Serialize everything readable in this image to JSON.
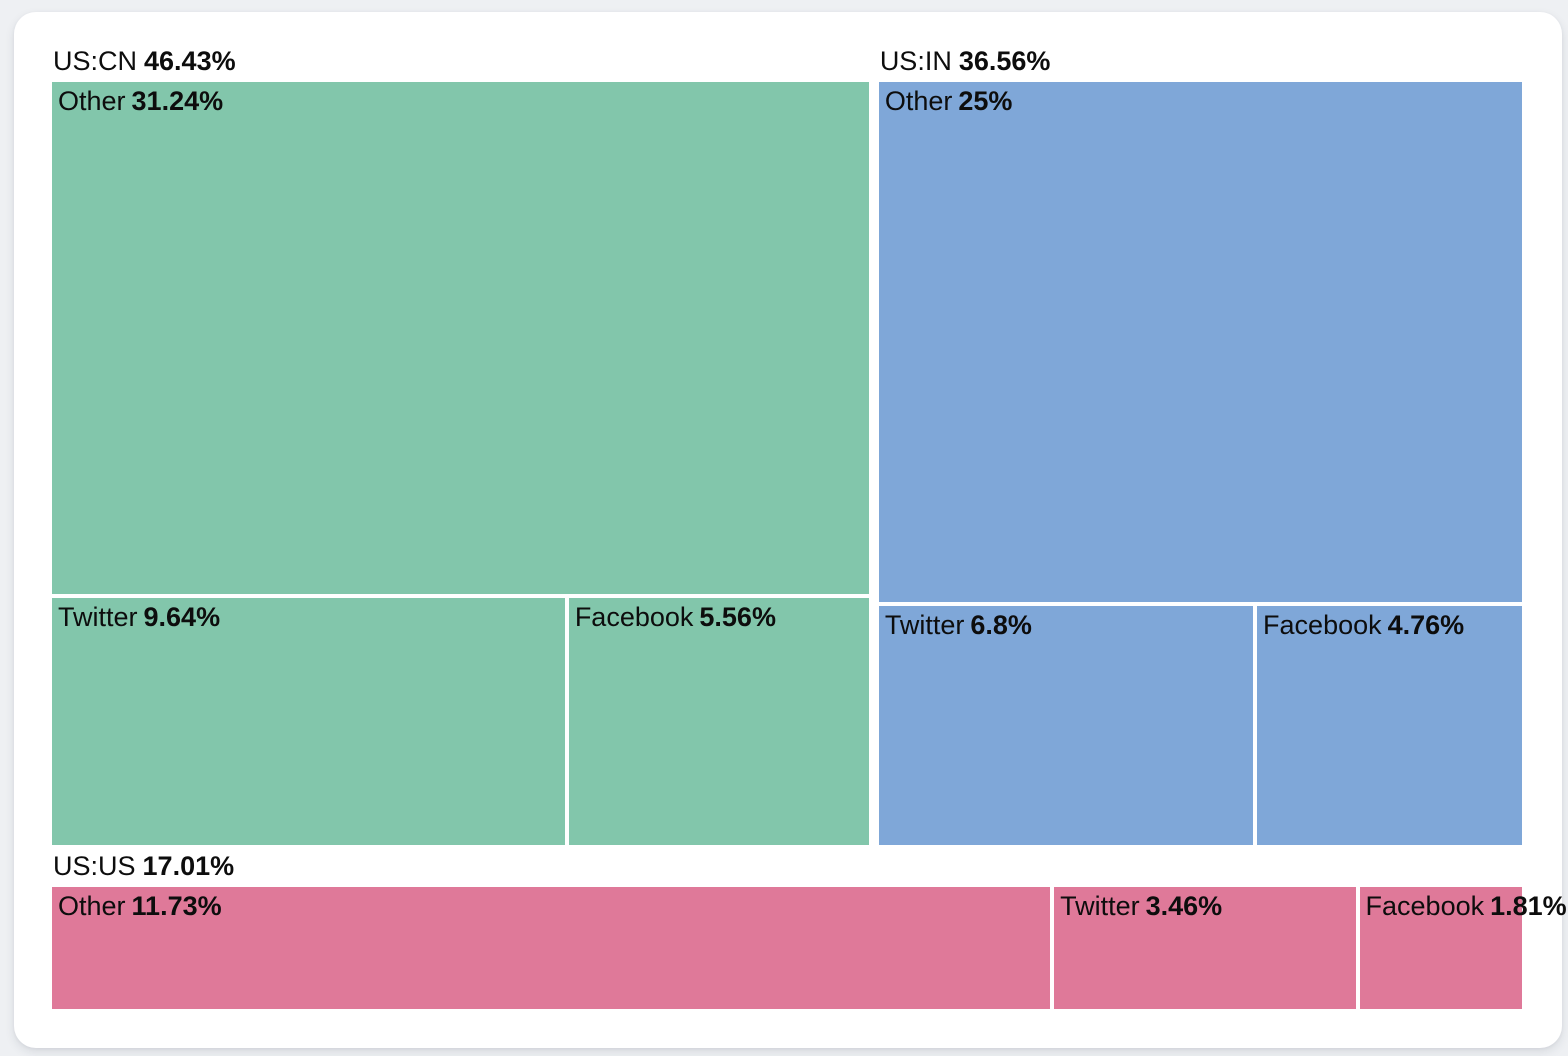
{
  "chart_data": {
    "type": "treemap",
    "title": "",
    "legend": "none",
    "unit": "%",
    "groups": [
      {
        "name": "US:CN",
        "share": 46.43,
        "share_label": "46.43%",
        "color": "#82c6ab",
        "children": [
          {
            "name": "Other",
            "value": 31.24,
            "label": "31.24%"
          },
          {
            "name": "Twitter",
            "value": 9.64,
            "label": "9.64%"
          },
          {
            "name": "Facebook",
            "value": 5.56,
            "label": "5.56%"
          }
        ]
      },
      {
        "name": "US:IN",
        "share": 36.56,
        "share_label": "36.56%",
        "color": "#7fa7d8",
        "children": [
          {
            "name": "Other",
            "value": 25,
            "label": "25%"
          },
          {
            "name": "Twitter",
            "value": 6.8,
            "label": "6.8%"
          },
          {
            "name": "Facebook",
            "value": 4.76,
            "label": "4.76%"
          }
        ]
      },
      {
        "name": "US:US",
        "share": 17.01,
        "share_label": "17.01%",
        "color": "#df7999",
        "children": [
          {
            "name": "Other",
            "value": 11.73,
            "label": "11.73%"
          },
          {
            "name": "Twitter",
            "value": 3.46,
            "label": "3.46%"
          },
          {
            "name": "Facebook",
            "value": 1.81,
            "label": "1.81%"
          }
        ]
      }
    ]
  }
}
